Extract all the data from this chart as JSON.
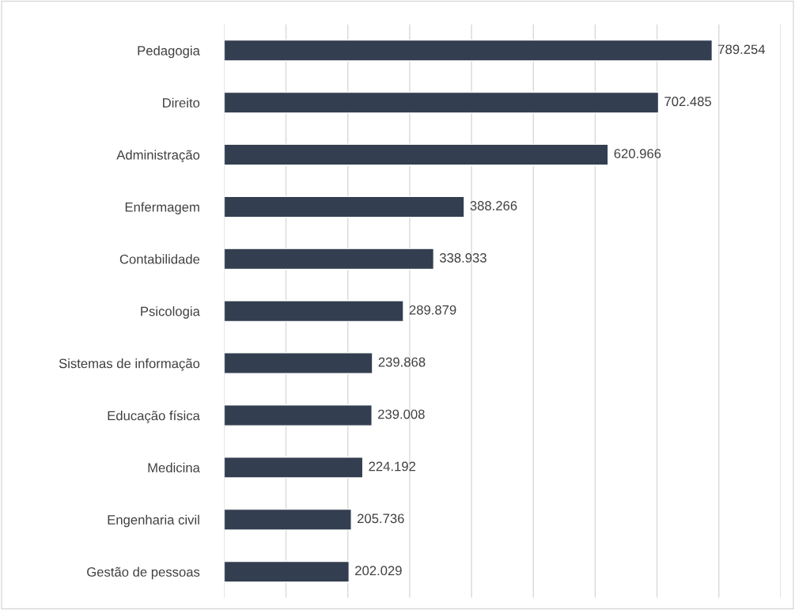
{
  "chart_data": {
    "type": "bar",
    "orientation": "horizontal",
    "categories": [
      "Pedagogia",
      "Direito",
      "Administração",
      "Enfermagem",
      "Contabilidade",
      "Psicologia",
      "Sistemas de informação",
      "Educação física",
      "Medicina",
      "Engenharia civil",
      "Gestão de pessoas"
    ],
    "values": [
      789.254,
      702.485,
      620.966,
      388.266,
      338.933,
      289.879,
      239.868,
      239.008,
      224.192,
      205.736,
      202.029
    ],
    "color": "#333f50",
    "value_labels": [
      "789.254",
      "702.485",
      "620.966",
      "388.266",
      "338.933",
      "289.879",
      "239.868",
      "239.008",
      "224.192",
      "205.736",
      "202.029"
    ],
    "xlim": [
      0,
      900
    ],
    "xticks": [
      {
        "value": 0,
        "label": null
      },
      {
        "value": 100,
        "label": null
      },
      {
        "value": 200,
        "label": null
      },
      {
        "value": 300,
        "label": null
      },
      {
        "value": 400,
        "label": null
      },
      {
        "value": 500,
        "label": null
      },
      {
        "value": 600,
        "label": null
      },
      {
        "value": 700,
        "label": null
      },
      {
        "value": 800,
        "label": null
      },
      {
        "value": 900,
        "label": null
      }
    ],
    "grid": "x",
    "tick_labels": "y",
    "legend": false
  }
}
